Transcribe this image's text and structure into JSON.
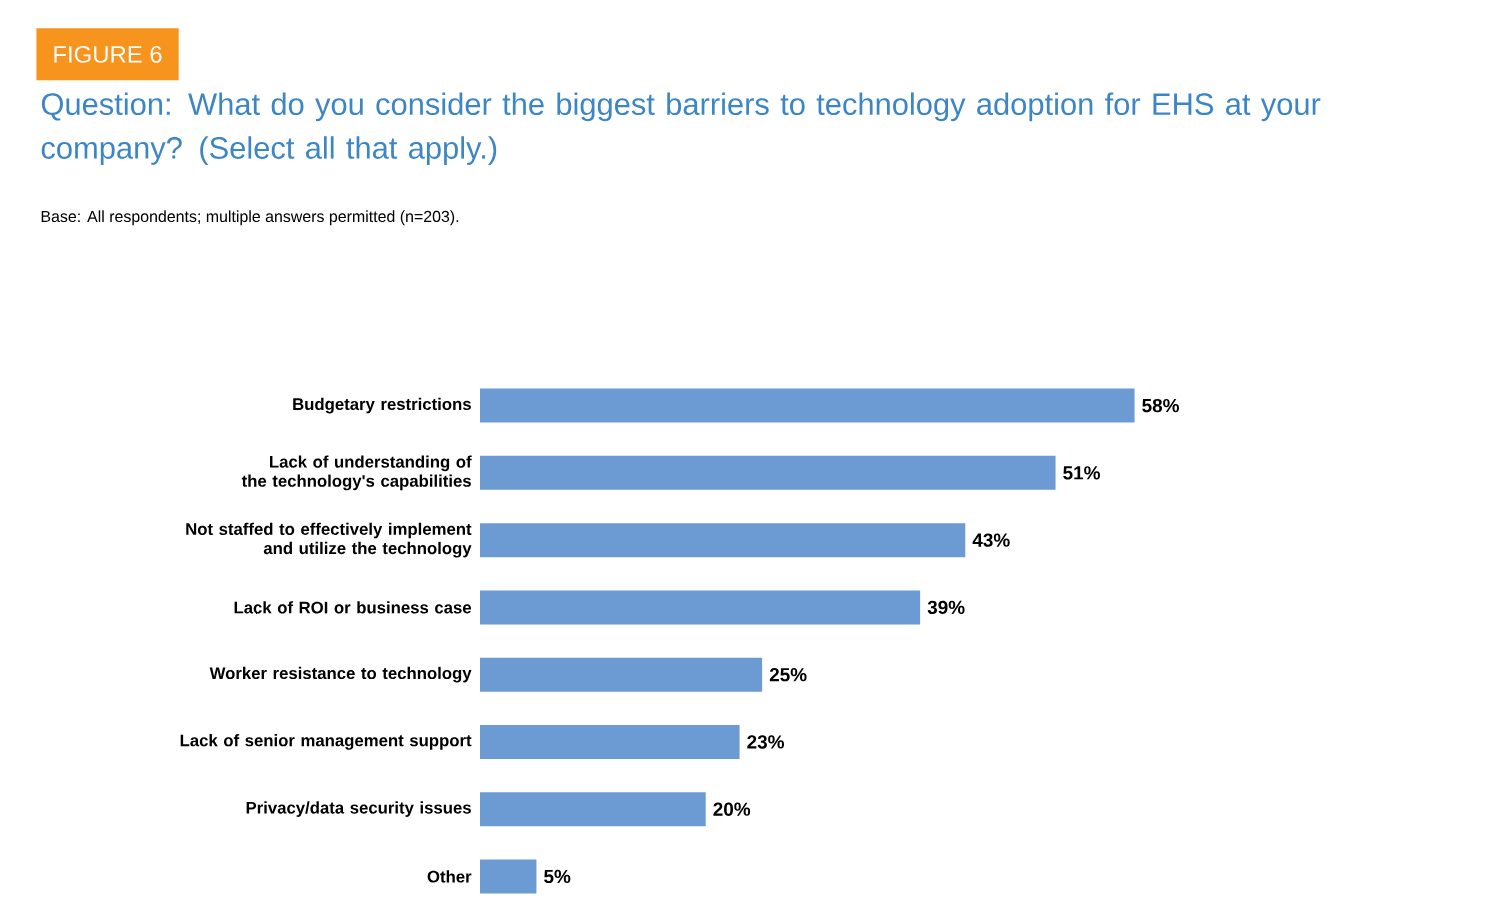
{
  "chart_data": {
    "type": "bar",
    "orientation": "horizontal",
    "annotations": [
      "FIGURE 6"
    ],
    "title": "Question: What do you consider the biggest barriers to technology adoption for EHS at your company? (Select all that apply.)",
    "subtitle": "Base: All respondents; multiple answers permitted (n=203).",
    "categories": [
      "Budgetary restrictions",
      "Lack of understanding of the technology's capabilities",
      "Not staffed to effectively implement and utilize the technology",
      "Lack of ROI or business case",
      "Worker resistance to technology",
      "Lack of senior management support",
      "Privacy/data security issues",
      "Other"
    ],
    "values": [
      58,
      51,
      43,
      39,
      25,
      23,
      20,
      5
    ],
    "value_labels": [
      "58%",
      "51%",
      "43%",
      "39%",
      "25%",
      "23%",
      "20%",
      "5%"
    ],
    "color": "#6b9bd2"
  }
}
